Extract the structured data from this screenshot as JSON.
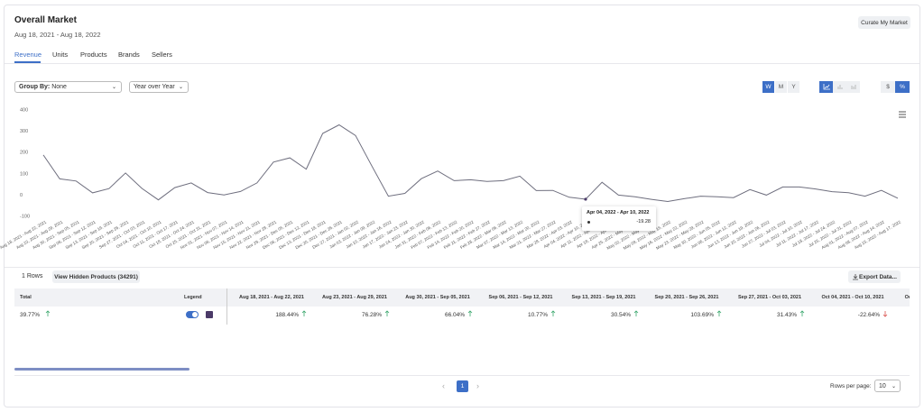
{
  "header": {
    "title": "Overall Market",
    "date_range": "Aug 18, 2021 - Aug 18, 2022",
    "button": "Curate My Market"
  },
  "tabs": [
    "Revenue",
    "Units",
    "Products",
    "Brands",
    "Sellers"
  ],
  "active_tab": 0,
  "controls": {
    "group_by_label": "Group By:",
    "group_by_value": "None",
    "comparison": "Year over Year",
    "periods": [
      "W",
      "M",
      "Y"
    ],
    "active_period": 0,
    "units": [
      "$",
      "%"
    ],
    "active_unit": 1
  },
  "chart_data": {
    "type": "line",
    "x": [
      "Aug 18, 2021 - Aug 22, 2021",
      "Aug 23, 2021 - Aug 29, 2021",
      "Aug 30, 2021 - Sep 05, 2021",
      "Sep 06, 2021 - Sep 12, 2021",
      "Sep 13, 2021 - Sep 19, 2021",
      "Sep 20, 2021 - Sep 26, 2021",
      "Sep 27, 2021 - Oct 03, 2021",
      "Oct 04, 2021 - Oct 10, 2021",
      "Oct 11, 2021 - Oct 17, 2021",
      "Oct 18, 2021 - Oct 24, 2021",
      "Oct 25, 2021 - Oct 31, 2021",
      "Nov 01, 2021 - Nov 07, 2021",
      "Nov 08, 2021 - Nov 14, 2021",
      "Nov 15, 2021 - Nov 21, 2021",
      "Nov 22, 2021 - Nov 28, 2021",
      "Nov 29, 2021 - Dec 05, 2021",
      "Dec 06, 2021 - Dec 12, 2021",
      "Dec 13, 2021 - Dec 19, 2021",
      "Dec 20, 2021 - Dec 26, 2021",
      "Dec 27, 2021 - Jan 02, 2022",
      "Jan 03, 2022 - Jan 09, 2022",
      "Jan 10, 2022 - Jan 16, 2022",
      "Jan 17, 2022 - Jan 23, 2022",
      "Jan 24, 2022 - Jan 30, 2022",
      "Jan 31, 2022 - Feb 06, 2022",
      "Feb 07, 2022 - Feb 13, 2022",
      "Feb 14, 2022 - Feb 20, 2022",
      "Feb 21, 2022 - Feb 27, 2022",
      "Feb 28, 2022 - Mar 06, 2022",
      "Mar 07, 2022 - Mar 13, 2022",
      "Mar 14, 2022 - Mar 20, 2022",
      "Mar 21, 2022 - Mar 27, 2022",
      "Mar 28, 2022 - Apr 03, 2022",
      "Apr 04, 2022 - Apr 10, 2022",
      "Apr 11, 2022 - Apr 17, 2022",
      "Apr 18, 2022 - Apr 24, 2022",
      "Apr 25, 2022 - May 01, 2022",
      "May 02, 2022 - May 08, 2022",
      "May 09, 2022 - May 15, 2022",
      "May 16, 2022 - May 22, 2022",
      "May 23, 2022 - May 29, 2022",
      "May 30, 2022 - Jun 05, 2022",
      "Jun 06, 2022 - Jun 12, 2022",
      "Jun 13, 2022 - Jun 19, 2022",
      "Jun 20, 2022 - Jun 26, 2022",
      "Jun 27, 2022 - Jul 03, 2022",
      "Jul 04, 2022 - Jul 10, 2022",
      "Jul 11, 2022 - Jul 17, 2022",
      "Jul 18, 2022 - Jul 24, 2022",
      "Jul 25, 2022 - Jul 31, 2022",
      "Aug 01, 2022 - Aug 07, 2022",
      "Aug 08, 2022 - Aug 14, 2022",
      "Aug 15, 2022 - Aug 17, 2022"
    ],
    "series": [
      {
        "color": "#6e6e7e",
        "values": [
          188.44,
          76.28,
          66.04,
          10.77,
          30.54,
          103.69,
          31.43,
          -22.64,
          35,
          57,
          12,
          1,
          17,
          57,
          155,
          175,
          122,
          290,
          330,
          280,
          136,
          -5,
          8,
          77,
          113,
          68,
          72,
          64,
          68,
          89,
          21,
          22,
          -10,
          -19.28,
          60,
          0,
          -8,
          -20,
          -30,
          -17,
          -5,
          -8,
          -12,
          26,
          0,
          38,
          38,
          29,
          16,
          11,
          -5,
          22,
          -15
        ]
      }
    ],
    "ylim": [
      -100,
      400
    ],
    "yticks": [
      400,
      300,
      200,
      100,
      0,
      -100
    ],
    "grid": false
  },
  "table": {
    "row_count": "1 Rows",
    "hidden_button": "View Hidden Products (34291)",
    "export_button": "Export Data...",
    "headers": [
      "Total",
      "Legend"
    ],
    "rows": [
      {
        "total": "39.77%",
        "values": [
          "188.44%",
          "76.28%",
          "66.04%",
          "10.77%",
          "30.54%",
          "103.69%",
          "31.43%",
          "-22.64%"
        ],
        "color": "#4b3a68"
      }
    ]
  },
  "pagination": {
    "page": 1,
    "rows_per_page_label": "Rows per page:",
    "rows_per_page": 10
  }
}
